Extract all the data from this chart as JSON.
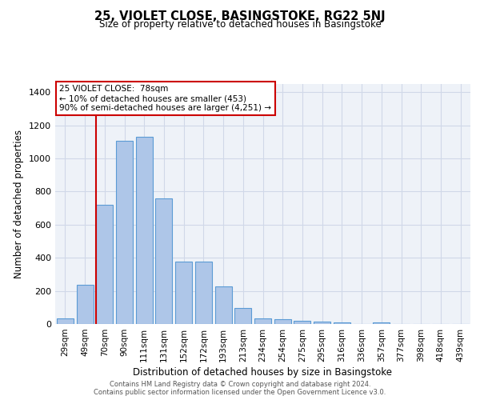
{
  "title": "25, VIOLET CLOSE, BASINGSTOKE, RG22 5NJ",
  "subtitle": "Size of property relative to detached houses in Basingstoke",
  "xlabel": "Distribution of detached houses by size in Basingstoke",
  "ylabel": "Number of detached properties",
  "footer_line1": "Contains HM Land Registry data © Crown copyright and database right 2024.",
  "footer_line2": "Contains public sector information licensed under the Open Government Licence v3.0.",
  "bar_labels": [
    "29sqm",
    "49sqm",
    "70sqm",
    "90sqm",
    "111sqm",
    "131sqm",
    "152sqm",
    "172sqm",
    "193sqm",
    "213sqm",
    "234sqm",
    "254sqm",
    "275sqm",
    "295sqm",
    "316sqm",
    "336sqm",
    "357sqm",
    "377sqm",
    "398sqm",
    "418sqm",
    "439sqm"
  ],
  "bar_values": [
    35,
    235,
    720,
    1105,
    1130,
    760,
    375,
    375,
    225,
    95,
    35,
    28,
    20,
    15,
    10,
    0,
    10,
    0,
    0,
    0,
    0
  ],
  "bar_color": "#aec6e8",
  "bar_edge_color": "#5b9bd5",
  "grid_color": "#d0d8e8",
  "bg_color": "#eef2f8",
  "vline_x": 1.575,
  "vline_color": "#cc0000",
  "annotation_title": "25 VIOLET CLOSE:  78sqm",
  "annotation_line1": "← 10% of detached houses are smaller (453)",
  "annotation_line2": "90% of semi-detached houses are larger (4,251) →",
  "annotation_box_color": "#cc0000",
  "ylim": [
    0,
    1450
  ],
  "yticks": [
    0,
    200,
    400,
    600,
    800,
    1000,
    1200,
    1400
  ]
}
